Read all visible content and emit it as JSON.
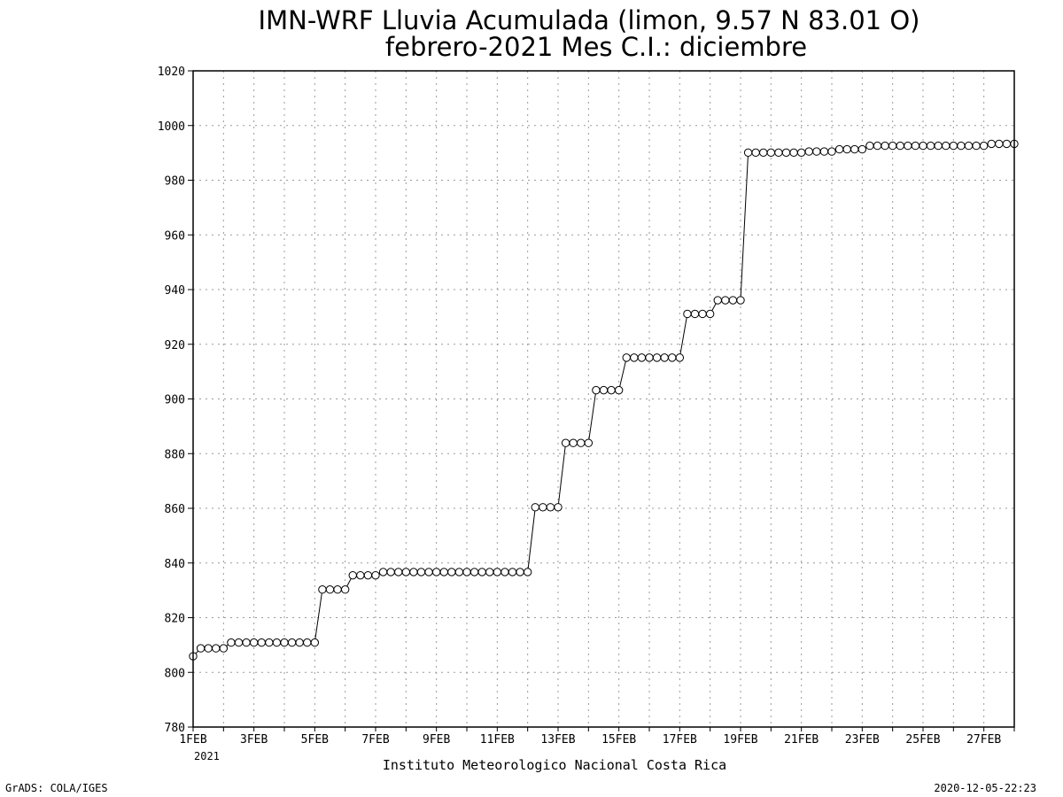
{
  "chart_data": {
    "type": "line",
    "title": "IMN-WRF  Lluvia Acumulada (limon, 9.57  N 83.01  O)",
    "subtitle": "febrero-2021 Mes C.I.: diciembre",
    "xlabel": "",
    "ylabel": "",
    "credit": "Instituto Meteorologico Nacional Costa Rica",
    "ylim": [
      780,
      1020
    ],
    "xlim": [
      1,
      28
    ],
    "yticks": [
      780,
      800,
      820,
      840,
      860,
      880,
      900,
      920,
      940,
      960,
      980,
      1000,
      1020
    ],
    "xticks": [
      {
        "x": 1,
        "label": "1FEB"
      },
      {
        "x": 3,
        "label": "3FEB"
      },
      {
        "x": 5,
        "label": "5FEB"
      },
      {
        "x": 7,
        "label": "7FEB"
      },
      {
        "x": 9,
        "label": "9FEB"
      },
      {
        "x": 11,
        "label": "11FEB"
      },
      {
        "x": 13,
        "label": "13FEB"
      },
      {
        "x": 15,
        "label": "15FEB"
      },
      {
        "x": 17,
        "label": "17FEB"
      },
      {
        "x": 19,
        "label": "19FEB"
      },
      {
        "x": 21,
        "label": "21FEB"
      },
      {
        "x": 23,
        "label": "23FEB"
      },
      {
        "x": 25,
        "label": "25FEB"
      },
      {
        "x": 27,
        "label": "27FEB"
      }
    ],
    "year_label": "2021",
    "grid": true,
    "marker": "open-circle",
    "series": [
      {
        "x": [
          1,
          1.25,
          1.5,
          1.75,
          2,
          2.25,
          2.5,
          2.75,
          3,
          3.25,
          3.5,
          3.75,
          4,
          4.25,
          4.5,
          4.75,
          5,
          5.25,
          5.5,
          5.75,
          6,
          6.25,
          6.5,
          6.75,
          7,
          7.25,
          7.5,
          7.75,
          8,
          8.25,
          8.5,
          8.75,
          9,
          9.25,
          9.5,
          9.75,
          10,
          10.25,
          10.5,
          10.75,
          11,
          11.25,
          11.5,
          11.75,
          12,
          12.25,
          12.5,
          12.75,
          13,
          13.25,
          13.5,
          13.75,
          14,
          14.25,
          14.5,
          14.75,
          15,
          15.25,
          15.5,
          15.75,
          16,
          16.25,
          16.5,
          16.75,
          17,
          17.25,
          17.5,
          17.75,
          18,
          18.25,
          18.5,
          18.75,
          19,
          19.25,
          19.5,
          19.75,
          20,
          20.25,
          20.5,
          20.75,
          21,
          21.25,
          21.5,
          21.75,
          22,
          22.25,
          22.5,
          22.75,
          23,
          23.25,
          23.5,
          23.75,
          24,
          24.25,
          24.5,
          24.75,
          25,
          25.25,
          25.5,
          25.75,
          26,
          26.25,
          26.5,
          26.75,
          27,
          27.25,
          27.5,
          27.75,
          28
        ],
        "values": [
          805.9,
          808.8,
          808.8,
          808.8,
          808.8,
          810.9,
          810.9,
          810.9,
          810.9,
          810.9,
          810.9,
          810.9,
          810.9,
          810.9,
          810.9,
          810.9,
          810.9,
          830.3,
          830.3,
          830.3,
          830.3,
          835.5,
          835.5,
          835.5,
          835.5,
          836.7,
          836.7,
          836.7,
          836.7,
          836.7,
          836.7,
          836.7,
          836.7,
          836.7,
          836.7,
          836.7,
          836.7,
          836.7,
          836.7,
          836.7,
          836.7,
          836.7,
          836.7,
          836.7,
          836.7,
          860.4,
          860.4,
          860.4,
          860.4,
          883.9,
          883.9,
          883.9,
          883.9,
          903.2,
          903.2,
          903.2,
          903.2,
          915.1,
          915.1,
          915.1,
          915.1,
          915.1,
          915.1,
          915.1,
          915.1,
          931.1,
          931.1,
          931.1,
          931.1,
          936.1,
          936.1,
          936.1,
          936.1,
          990.1,
          990.1,
          990.1,
          990.1,
          990.1,
          990.1,
          990.1,
          990.1,
          990.5,
          990.5,
          990.5,
          990.5,
          991.3,
          991.3,
          991.3,
          991.3,
          992.6,
          992.6,
          992.6,
          992.6,
          992.6,
          992.6,
          992.6,
          992.6,
          992.6,
          992.6,
          992.6,
          992.6,
          992.6,
          992.6,
          992.6,
          992.6,
          993.3,
          993.3,
          993.3,
          993.3
        ]
      }
    ]
  },
  "footer": {
    "left": "GrADS: COLA/IGES",
    "right": "2020-12-05-22:23"
  }
}
